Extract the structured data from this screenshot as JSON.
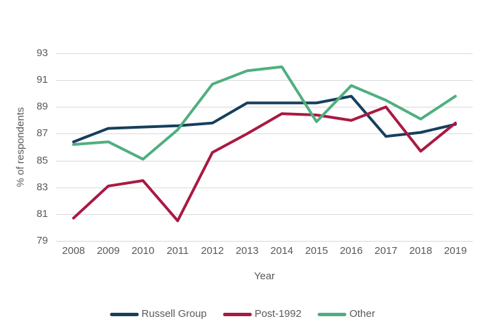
{
  "chart_data": {
    "type": "line",
    "title": "",
    "xlabel": "Year",
    "ylabel": "% of respondents",
    "categories": [
      "2008",
      "2009",
      "2010",
      "2011",
      "2012",
      "2013",
      "2014",
      "2015",
      "2016",
      "2017",
      "2018",
      "2019"
    ],
    "series": [
      {
        "name": "Russell Group",
        "color": "#163F5C",
        "values": [
          86.4,
          87.4,
          87.5,
          87.6,
          87.8,
          89.3,
          89.3,
          89.3,
          89.8,
          86.8,
          87.1,
          87.7
        ]
      },
      {
        "name": "Post-1992",
        "color": "#A91942",
        "values": [
          80.7,
          83.1,
          83.5,
          80.5,
          85.6,
          87.0,
          88.5,
          88.4,
          88.0,
          89.0,
          85.7,
          87.8
        ]
      },
      {
        "name": "Other",
        "color": "#4FAF80",
        "values": [
          86.2,
          86.4,
          85.1,
          87.3,
          90.7,
          91.7,
          92.0,
          87.9,
          90.6,
          89.5,
          88.1,
          89.8
        ]
      }
    ],
    "ylim": [
      79,
      93
    ],
    "ytick_step": 2,
    "yticks": [
      "79",
      "81",
      "83",
      "85",
      "87",
      "89",
      "91",
      "93"
    ],
    "grid": true,
    "grid_color": "#D9D9D9",
    "text_color": "#595959",
    "legend_position": "bottom"
  }
}
